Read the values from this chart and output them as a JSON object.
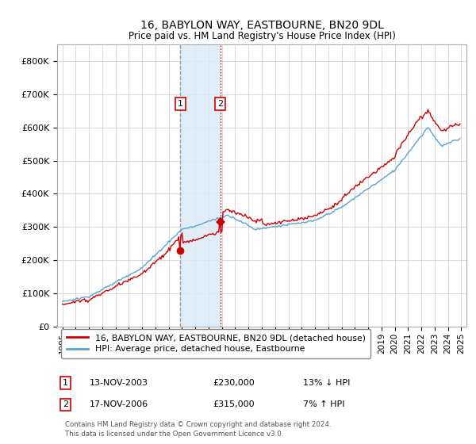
{
  "title": "16, BABYLON WAY, EASTBOURNE, BN20 9DL",
  "subtitle": "Price paid vs. HM Land Registry's House Price Index (HPI)",
  "legend_line1": "16, BABYLON WAY, EASTBOURNE, BN20 9DL (detached house)",
  "legend_line2": "HPI: Average price, detached house, Eastbourne",
  "sale1_date": "13-NOV-2003",
  "sale1_price": "£230,000",
  "sale1_hpi": "13% ↓ HPI",
  "sale1_year": 2003.87,
  "sale1_value": 230000,
  "sale2_date": "17-NOV-2006",
  "sale2_price": "£315,000",
  "sale2_hpi": "7% ↑ HPI",
  "sale2_year": 2006.87,
  "sale2_value": 315000,
  "footnote1": "Contains HM Land Registry data © Crown copyright and database right 2024.",
  "footnote2": "This data is licensed under the Open Government Licence v3.0.",
  "hpi_color": "#5ba3d0",
  "price_color": "#cc0000",
  "shade_color": "#daeaf5",
  "background_color": "#ffffff",
  "grid_color": "#cccccc",
  "ylim": [
    0,
    850000
  ],
  "xlim_start": 1994.6,
  "xlim_end": 2025.4
}
